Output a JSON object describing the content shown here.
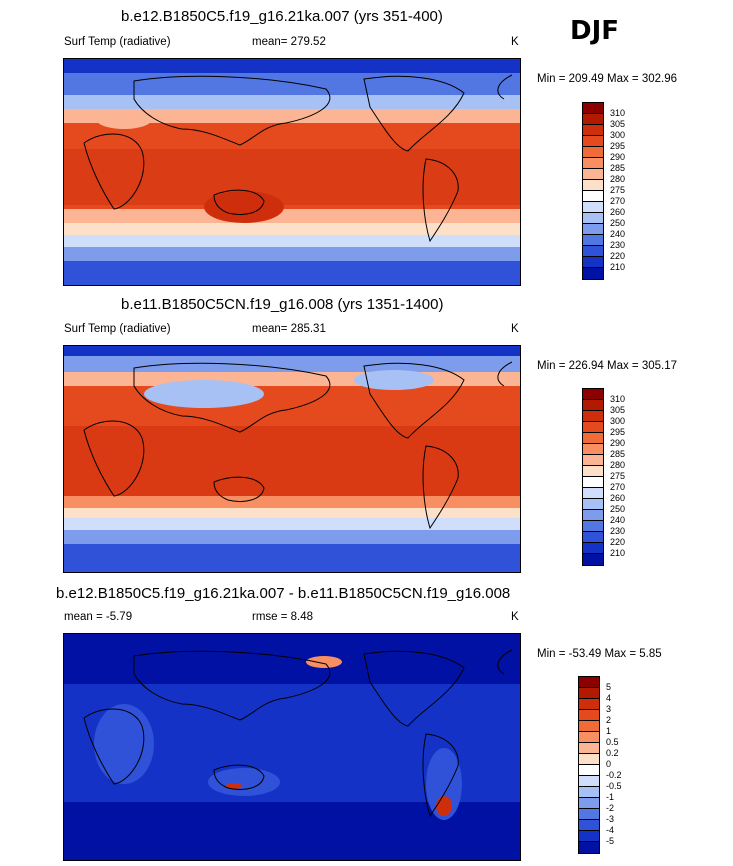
{
  "season": "DJF",
  "panels": [
    {
      "title": "b.e12.B1850C5.f19_g16.21ka.007 (yrs 351-400)",
      "left_label": "Surf Temp (radiative)",
      "mid_label": "mean= 279.52",
      "units": "K",
      "minmax": "Min = 209.49 Max = 302.96",
      "colorbar": {
        "labels": [
          "310",
          "305",
          "300",
          "295",
          "290",
          "285",
          "280",
          "275",
          "270",
          "260",
          "250",
          "240",
          "230",
          "220",
          "210"
        ],
        "colors": [
          "#8b0000",
          "#b21a00",
          "#cf2e0c",
          "#e54a1e",
          "#f06b3a",
          "#f88f62",
          "#fbb594",
          "#fde0c8",
          "#ffffff",
          "#cfdffb",
          "#a7c1f4",
          "#7d9cec",
          "#5276e2",
          "#2f52d8",
          "#1433c6",
          "#0011a4"
        ]
      }
    },
    {
      "title": "b.e11.B1850C5CN.f19_g16.008 (yrs 1351-1400)",
      "left_label": "Surf Temp (radiative)",
      "mid_label": "mean= 285.31",
      "units": "K",
      "minmax": "Min = 226.94 Max = 305.17",
      "colorbar": {
        "labels": [
          "310",
          "305",
          "300",
          "295",
          "290",
          "285",
          "280",
          "275",
          "270",
          "260",
          "250",
          "240",
          "230",
          "220",
          "210"
        ],
        "colors": [
          "#8b0000",
          "#b21a00",
          "#cf2e0c",
          "#e54a1e",
          "#f06b3a",
          "#f88f62",
          "#fbb594",
          "#fde0c8",
          "#ffffff",
          "#cfdffb",
          "#a7c1f4",
          "#7d9cec",
          "#5276e2",
          "#2f52d8",
          "#1433c6",
          "#0011a4"
        ]
      }
    },
    {
      "title": "b.e12.B1850C5.f19_g16.21ka.007 - b.e11.B1850C5CN.f19_g16.008",
      "left_label": "mean =  -5.79",
      "mid_label": "rmse =   8.48",
      "units": "K",
      "minmax": "Min = -53.49 Max =   5.85",
      "colorbar": {
        "labels": [
          "5",
          "4",
          "3",
          "2",
          "1",
          "0.5",
          "0.2",
          "0",
          "-0.2",
          "-0.5",
          "-1",
          "-2",
          "-3",
          "-4",
          "-5"
        ],
        "colors": [
          "#8b0000",
          "#b21a00",
          "#cf2e0c",
          "#e54a1e",
          "#f06b3a",
          "#f88f62",
          "#fbb594",
          "#fde0c8",
          "#ffffff",
          "#cfdffb",
          "#a7c1f4",
          "#7d9cec",
          "#5276e2",
          "#2f52d8",
          "#1433c6",
          "#0011a4"
        ]
      }
    }
  ]
}
